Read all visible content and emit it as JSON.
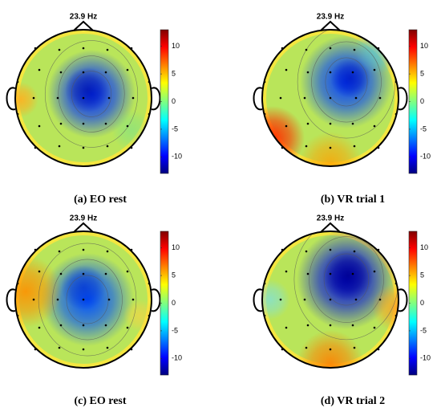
{
  "panels": [
    {
      "title": "23.9 Hz",
      "caption": "(a)  EO rest",
      "colorbar_ticks": [
        10,
        5,
        0,
        -5,
        -10
      ],
      "clim": [
        -13,
        13
      ]
    },
    {
      "title": "23.9 Hz",
      "caption": "(b)  VR trial 1",
      "colorbar_ticks": [
        10,
        5,
        0,
        -5,
        -10
      ],
      "clim": [
        -13,
        13
      ]
    },
    {
      "title": "23.9 Hz",
      "caption": "(c)  EO rest",
      "colorbar_ticks": [
        10,
        5,
        0,
        -5,
        -10
      ],
      "clim": [
        -13,
        13
      ]
    },
    {
      "title": "23.9 Hz",
      "caption": "(d)  VR trial 2",
      "colorbar_ticks": [
        10,
        5,
        0,
        -5,
        -10
      ],
      "clim": [
        -13,
        13
      ]
    }
  ]
}
